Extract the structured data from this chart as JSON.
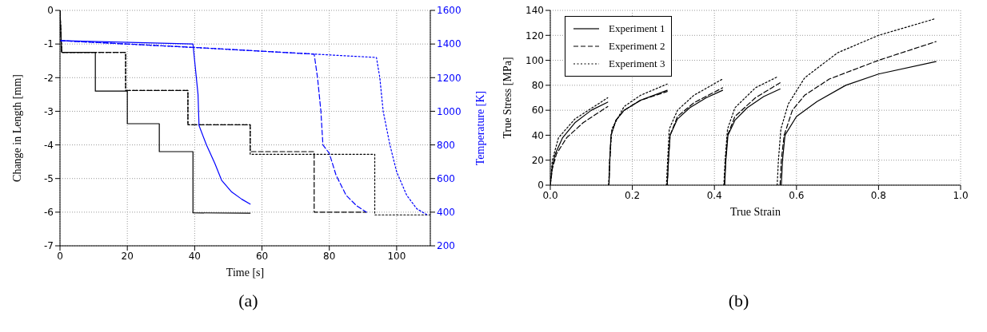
{
  "chart_data": [
    {
      "type": "line",
      "xlabel": "Time [s]",
      "ylabel": "Change in Length [mm]",
      "y2label": "Temperature [K]",
      "annotations": [
        "(a)"
      ],
      "xlim": [
        0,
        110
      ],
      "xticks": [
        0,
        20,
        40,
        60,
        80,
        100
      ],
      "ylim": [
        -7,
        0
      ],
      "yticks": [
        -7,
        -6,
        -5,
        -4,
        -3,
        -2,
        -1,
        0
      ],
      "y2lim": [
        200,
        1600
      ],
      "y2ticks": [
        200,
        400,
        600,
        800,
        1000,
        1200,
        1400,
        1600
      ],
      "grid": true,
      "series": [
        {
          "color": "#000000",
          "line_style": "solid",
          "x": [
            0,
            0.5,
            10.5,
            10.5,
            20,
            20,
            29.5,
            29.5,
            39.5,
            39.5,
            56.5
          ],
          "values": [
            0,
            -1.25,
            -1.25,
            -2.4,
            -2.4,
            -3.37,
            -3.37,
            -4.2,
            -4.2,
            -6.02,
            -6.03
          ]
        },
        {
          "color": "#000000",
          "line_style": "dashed",
          "x": [
            0,
            0.5,
            19.5,
            19.5,
            38,
            38,
            56.5,
            56.5,
            75.5,
            75.5,
            91
          ],
          "values": [
            0,
            -1.25,
            -1.25,
            -2.38,
            -2.38,
            -3.4,
            -3.4,
            -4.2,
            -4.2,
            -6.0,
            -6.0
          ]
        },
        {
          "color": "#000000",
          "line_style": "dotted",
          "x": [
            0,
            0.5,
            19.5,
            19.5,
            38,
            38,
            56.5,
            56.5,
            93.5,
            93.5,
            110
          ],
          "values": [
            0,
            -1.25,
            -1.25,
            -2.38,
            -2.38,
            -3.4,
            -3.4,
            -4.28,
            -4.28,
            -6.08,
            -6.08
          ]
        },
        {
          "color": "#0000ff",
          "line_style": "solid",
          "axis": "y2",
          "x": [
            0,
            39.5,
            40,
            41,
            41.3,
            43.5,
            46,
            48,
            51,
            54,
            56.5
          ],
          "values": [
            1420,
            1400,
            1300,
            1100,
            915,
            800,
            690,
            590,
            520,
            477,
            448
          ]
        },
        {
          "color": "#0000ff",
          "line_style": "dashed",
          "axis": "y2",
          "x": [
            0,
            40,
            75.5,
            76.5,
            77.5,
            78.1,
            80,
            82,
            85,
            88,
            91
          ],
          "values": [
            1420,
            1380,
            1340,
            1200,
            1000,
            800,
            750,
            620,
            500,
            440,
            400
          ]
        },
        {
          "color": "#0000ff",
          "line_style": "dotted",
          "axis": "y2",
          "x": [
            0,
            40,
            75.5,
            94,
            95,
            96,
            98,
            100,
            103,
            106,
            109
          ],
          "values": [
            1420,
            1379,
            1340,
            1320,
            1200,
            1000,
            800,
            640,
            500,
            420,
            385
          ]
        }
      ]
    },
    {
      "type": "line",
      "xlabel": "True Strain",
      "ylabel": "True Stress [MPa]",
      "annotations": [
        "(b)"
      ],
      "xlim": [
        0,
        1
      ],
      "xticks": [
        {
          "value": 0,
          "label": "0.0"
        },
        0.2,
        0.4,
        0.6,
        0.8,
        {
          "value": 1,
          "label": "1.0"
        }
      ],
      "ylim": [
        0,
        140
      ],
      "yticks": [
        0,
        20,
        40,
        60,
        80,
        100,
        120,
        140
      ],
      "grid": true,
      "legend": "top left",
      "series": [
        {
          "name": "Experiment 1",
          "color": "#000000",
          "line_style": "solid",
          "x": [
            0,
            0.005,
            0.012,
            0.03,
            0.06,
            0.1,
            0.14
          ],
          "values": [
            0,
            15,
            25,
            38,
            50,
            60,
            66.5
          ]
        },
        {
          "name": "Experiment 2",
          "color": "#000000",
          "line_style": "dashed",
          "x": [
            0,
            0.005,
            0.015,
            0.04,
            0.08,
            0.14
          ],
          "values": [
            0,
            13,
            25,
            38,
            50,
            63
          ]
        },
        {
          "name": "Experiment 3",
          "color": "#000000",
          "line_style": "dotted",
          "x": [
            0,
            0.005,
            0.02,
            0.06,
            0.14
          ],
          "values": [
            0,
            20,
            38,
            53,
            70
          ]
        },
        {
          "color": "#000000",
          "line_style": "solid",
          "x": [
            0.143,
            0.145,
            0.148,
            0.16,
            0.18,
            0.22,
            0.285
          ],
          "values": [
            0,
            20,
            40,
            52,
            60,
            68,
            76
          ]
        },
        {
          "color": "#000000",
          "line_style": "dashed",
          "x": [
            0.143,
            0.145,
            0.148,
            0.16,
            0.18,
            0.22,
            0.285
          ],
          "values": [
            0,
            20,
            40,
            52,
            60,
            68,
            75
          ]
        },
        {
          "color": "#000000",
          "line_style": "dotted",
          "x": [
            0.142,
            0.145,
            0.15,
            0.18,
            0.22,
            0.285
          ],
          "values": [
            0,
            20,
            45,
            63,
            72,
            81
          ]
        },
        {
          "color": "#000000",
          "line_style": "solid",
          "x": [
            0.285,
            0.288,
            0.292,
            0.31,
            0.34,
            0.38,
            0.42
          ],
          "values": [
            0,
            20,
            40,
            53,
            62,
            70,
            76
          ]
        },
        {
          "color": "#000000",
          "line_style": "dashed",
          "x": [
            0.285,
            0.288,
            0.292,
            0.31,
            0.35,
            0.42
          ],
          "values": [
            0,
            20,
            40,
            55,
            66,
            78
          ]
        },
        {
          "color": "#000000",
          "line_style": "dotted",
          "x": [
            0.283,
            0.286,
            0.29,
            0.31,
            0.35,
            0.42
          ],
          "values": [
            0,
            20,
            45,
            60,
            72,
            85
          ]
        },
        {
          "color": "#000000",
          "line_style": "solid",
          "x": [
            0.425,
            0.428,
            0.433,
            0.45,
            0.48,
            0.52,
            0.56
          ],
          "values": [
            0,
            20,
            40,
            52,
            62,
            71,
            77
          ]
        },
        {
          "color": "#000000",
          "line_style": "dashed",
          "x": [
            0.424,
            0.427,
            0.432,
            0.45,
            0.5,
            0.56
          ],
          "values": [
            0,
            20,
            40,
            55,
            70,
            82
          ]
        },
        {
          "color": "#000000",
          "line_style": "dotted",
          "x": [
            0.423,
            0.426,
            0.432,
            0.45,
            0.5,
            0.555
          ],
          "values": [
            0,
            20,
            45,
            62,
            78,
            87
          ]
        },
        {
          "color": "#000000",
          "line_style": "solid",
          "x": [
            0.563,
            0.566,
            0.572,
            0.6,
            0.65,
            0.72,
            0.8,
            0.94
          ],
          "values": [
            0,
            20,
            40,
            55,
            67,
            80,
            89,
            99
          ]
        },
        {
          "color": "#000000",
          "line_style": "dashed",
          "x": [
            0.56,
            0.563,
            0.57,
            0.59,
            0.62,
            0.68,
            0.8,
            0.94
          ],
          "values": [
            0,
            20,
            40,
            60,
            72,
            85,
            100,
            115
          ]
        },
        {
          "color": "#000000",
          "line_style": "dotted",
          "x": [
            0.553,
            0.556,
            0.562,
            0.58,
            0.62,
            0.7,
            0.8,
            0.935
          ],
          "values": [
            0,
            20,
            45,
            65,
            86,
            106,
            120,
            133
          ]
        }
      ]
    }
  ]
}
